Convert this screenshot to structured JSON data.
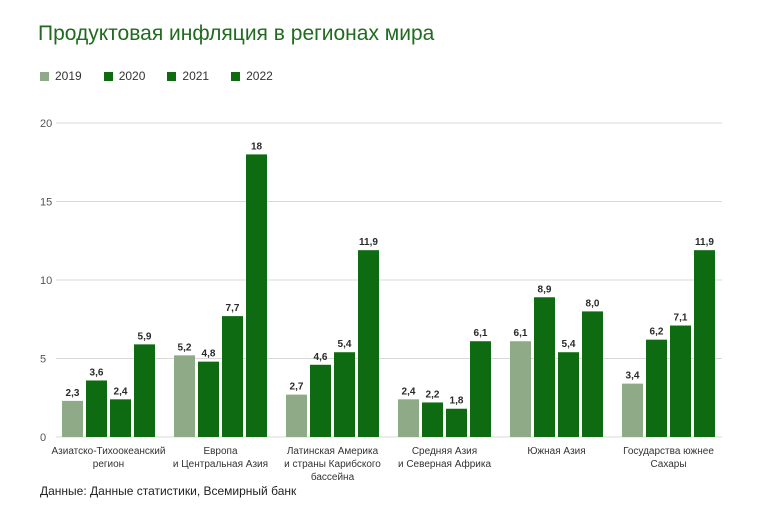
{
  "chart_data": {
    "type": "bar",
    "title": "Продуктовая инфляция в регионах мира",
    "source": "Данные: Данные статистики, Всемирный банк",
    "categories": [
      [
        "Азиатско-Тихоокеанский",
        "регион"
      ],
      [
        "Европа",
        "и Центральная Азия"
      ],
      [
        "Латинская Америка",
        "и страны Карибского",
        "бассейна"
      ],
      [
        "Средняя Азия",
        "и Северная Африка"
      ],
      [
        "Южная Азия"
      ],
      [
        "Государства южнее",
        "Сахары"
      ]
    ],
    "series": [
      {
        "name": "2019",
        "color": "#8faa87",
        "values": [
          2.3,
          5.2,
          2.7,
          2.4,
          6.1,
          3.4
        ],
        "labels": [
          "2,3",
          "5,2",
          "2,7",
          "2,4",
          "6,1",
          "3,4"
        ]
      },
      {
        "name": "2020",
        "color": "#0f6b12",
        "values": [
          3.6,
          4.8,
          4.6,
          2.2,
          8.9,
          6.2
        ],
        "labels": [
          "3,6",
          "4,8",
          "4,6",
          "2,2",
          "8,9",
          "6,2"
        ]
      },
      {
        "name": "2021",
        "color": "#0f6b12",
        "values": [
          2.4,
          7.7,
          5.4,
          1.8,
          5.4,
          7.1
        ],
        "labels": [
          "2,4",
          "7,7",
          "5,4",
          "1,8",
          "5,4",
          "7,1"
        ]
      },
      {
        "name": "2022",
        "color": "#0f6b12",
        "values": [
          5.9,
          18,
          11.9,
          6.1,
          8.0,
          11.9
        ],
        "labels": [
          "5,9",
          "18",
          "11,9",
          "6,1",
          "8,0",
          "11,9"
        ]
      }
    ],
    "ylim": [
      0,
      20
    ],
    "yticks": [
      "0",
      "5",
      "10",
      "15",
      "20"
    ],
    "grid": true,
    "legend_position": "top-left"
  }
}
